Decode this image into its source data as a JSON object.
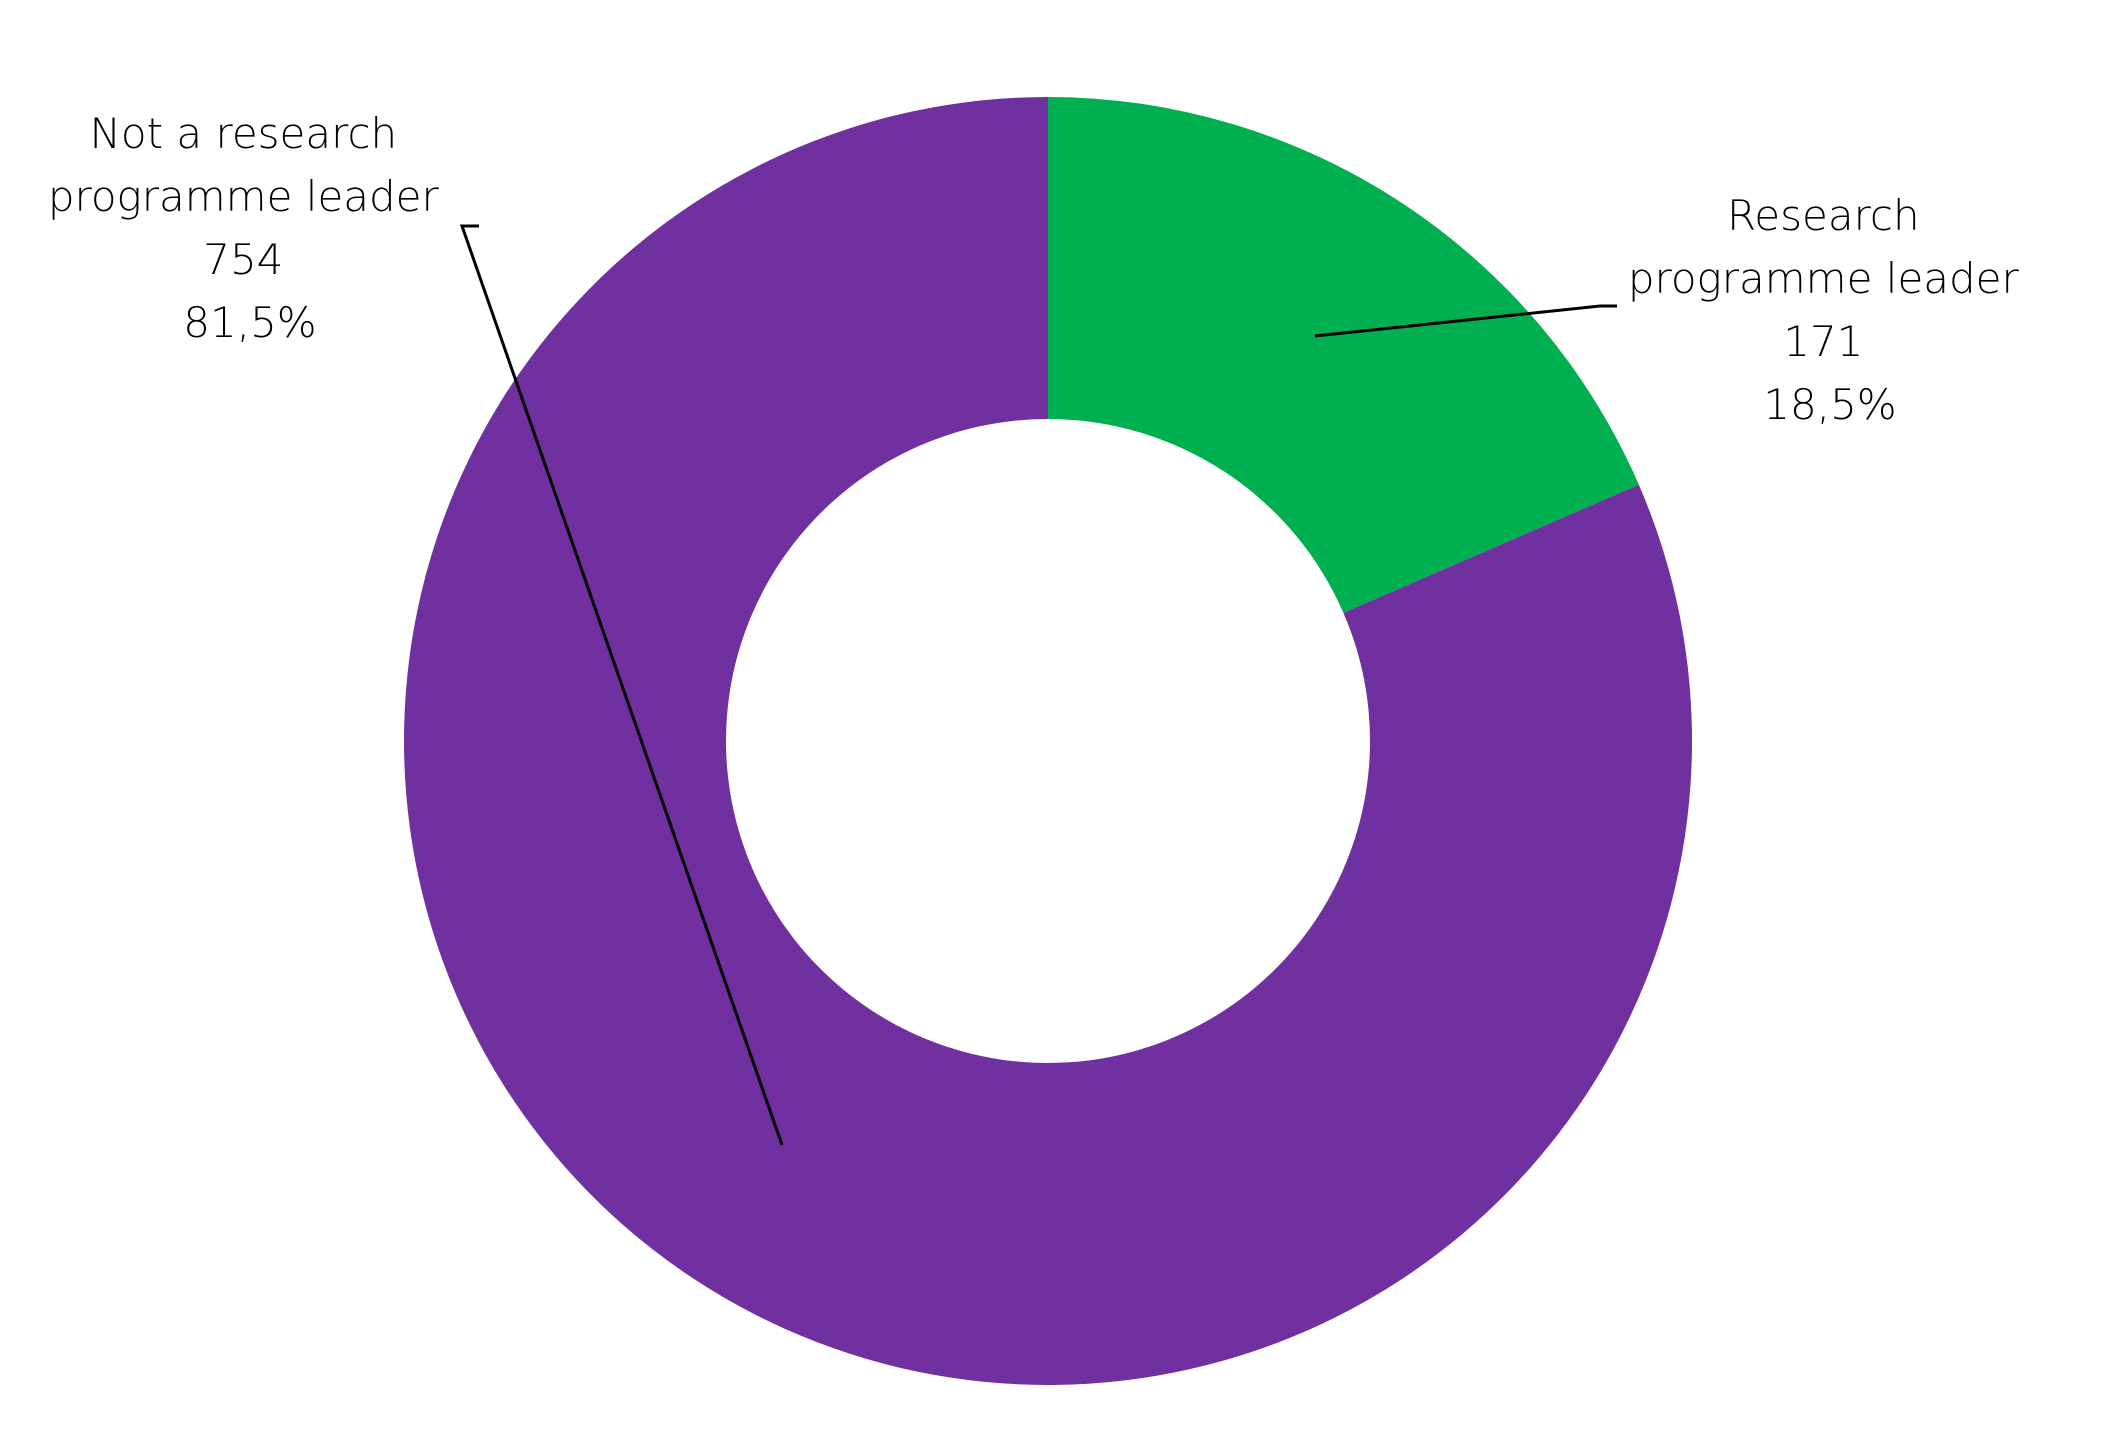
{
  "chart_data": {
    "type": "pie",
    "variant": "donut",
    "title": "",
    "slices": [
      {
        "name": "Research programme leader",
        "label_lines": [
          "Research",
          "programme leader"
        ],
        "value": 171,
        "percent_label": "18,5%",
        "color": "#00AF50"
      },
      {
        "name": "Not a research programme leader",
        "label_lines": [
          "Not a research",
          "programme leader"
        ],
        "value": 754,
        "percent_label": "81,5%",
        "color": "#7030A0"
      }
    ],
    "start_angle": "12 o'clock",
    "direction": "clockwise",
    "legend": "none"
  }
}
